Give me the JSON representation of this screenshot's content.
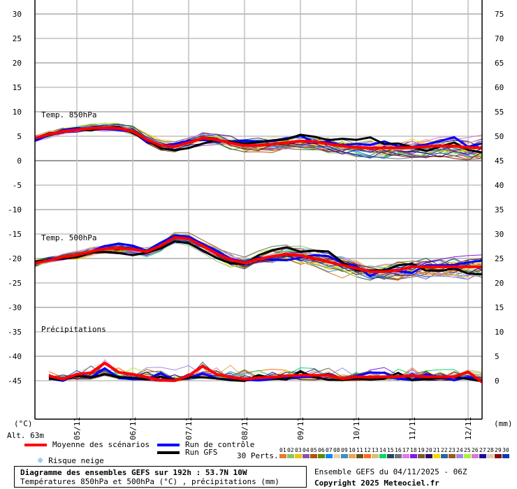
{
  "chart_data": {
    "type": "line",
    "title": "Diagramme des ensembles GEFS sur 192h : 53.7N 10W",
    "subtitle": "Températures 850hPa et 500hPa (°C) , précipitations (mm)",
    "run": "Ensemble GEFS du 04/11/2025 - 06Z",
    "x_step_hours": 6,
    "x_start": "04/11 06Z",
    "x_tick_labels": [
      "05/11",
      "06/11",
      "07/11",
      "08/11",
      "09/11",
      "10/11",
      "11/11",
      "12/11"
    ],
    "left_axis": {
      "label": "(°C)",
      "ticks": [
        30,
        25,
        20,
        15,
        10,
        5,
        0,
        -5,
        -10,
        -15,
        -20,
        -25,
        -30,
        -35,
        -40,
        -45
      ],
      "range": [
        -50,
        32
      ]
    },
    "right_axis": {
      "label": "(mm)",
      "ticks": [
        75,
        70,
        65,
        60,
        55,
        50,
        45,
        40,
        35,
        30,
        25,
        20,
        15,
        10,
        5,
        0
      ]
    },
    "grid": true,
    "panel_labels": [
      "Temp. 850hPa",
      "Temp. 500hPa",
      "Précipitations"
    ],
    "series": [
      {
        "name": "Moyenne des scénarios - Temp. 850hPa",
        "color": "#ff0000",
        "unit": "°C",
        "values": [
          4.6,
          5.4,
          6.0,
          6.3,
          6.6,
          6.7,
          6.6,
          6.0,
          4.3,
          3.1,
          2.9,
          3.7,
          4.6,
          4.3,
          3.6,
          3.1,
          3.1,
          3.4,
          3.7,
          4.0,
          3.9,
          3.4,
          3.0,
          2.7,
          2.6,
          2.6,
          2.6,
          2.7,
          2.9,
          3.0,
          3.0,
          2.7,
          2.6
        ]
      },
      {
        "name": "Moyenne des scénarios - Temp. 500hPa",
        "color": "#ff0000",
        "unit": "°C",
        "values": [
          -21.0,
          -20.4,
          -19.7,
          -19.3,
          -18.6,
          -18.0,
          -17.9,
          -18.1,
          -18.6,
          -17.4,
          -15.7,
          -16.0,
          -17.4,
          -19.0,
          -20.3,
          -20.9,
          -20.1,
          -19.6,
          -19.1,
          -19.4,
          -20.0,
          -20.7,
          -21.4,
          -22.0,
          -22.7,
          -22.7,
          -22.4,
          -21.7,
          -21.7,
          -21.7,
          -21.7,
          -21.7,
          -21.7
        ]
      },
      {
        "name": "Moyenne des scénarios - Précipitations",
        "color": "#ff0000",
        "unit": "mm",
        "start_index": 1,
        "values": [
          1.3,
          0.6,
          1.6,
          1.9,
          3.9,
          2.0,
          1.6,
          1.0,
          0.4,
          0.3,
          1.3,
          3.3,
          1.6,
          1.0,
          0.6,
          0.9,
          1.0,
          1.3,
          1.4,
          1.4,
          1.4,
          0.7,
          1.1,
          1.0,
          1.1,
          1.1,
          1.3,
          1.1,
          1.1,
          1.1,
          2.1,
          0.0
        ]
      }
    ],
    "legend": [
      {
        "label": "Moyenne des scénarios",
        "color": "#ff0000"
      },
      {
        "label": "Run de contrôle",
        "color": "#0000ff"
      },
      {
        "label": "Run GFS",
        "color": "#000000"
      },
      {
        "label": "Risque neige",
        "icon": "snowflake"
      }
    ],
    "perturbations": {
      "label": "30 Perts.",
      "ids": [
        "01",
        "02",
        "03",
        "04",
        "05",
        "06",
        "07",
        "08",
        "09",
        "10",
        "11",
        "12",
        "13",
        "14",
        "15",
        "16",
        "17",
        "18",
        "19",
        "20",
        "21",
        "22",
        "23",
        "24",
        "25",
        "26",
        "27",
        "28",
        "29",
        "30"
      ],
      "colors": [
        "#e8792f",
        "#86c46a",
        "#f2c200",
        "#8e4fb0",
        "#b0520e",
        "#5a8a0a",
        "#0a84ff",
        "#e8d3a8",
        "#3f8fbf",
        "#e8a85a",
        "#6a4f1a",
        "#ff6a1a",
        "#d6c07a",
        "#0ad66a",
        "#27475f",
        "#6a7278",
        "#e07ae8",
        "#7f1ae8",
        "#7a5a2f",
        "#2f0a6a",
        "#f2d800",
        "#2a63a0",
        "#9a5a1f",
        "#a08ae8",
        "#a8f23a",
        "#d87ad0",
        "#1f0aa0",
        "#e0ccaa",
        "#8a0a0a",
        "#0a3ab8"
      ]
    }
  },
  "axes": {
    "left_unit": "(°C)",
    "right_unit": "(mm)",
    "altitude": "Alt. 63m"
  },
  "labels": {
    "temp850": "Temp. 850hPa",
    "temp500": "Temp. 500hPa",
    "precip": "Précipitations"
  },
  "legend": {
    "mean": "Moyenne des scénarios",
    "control": "Run de contrôle",
    "gfs": "Run GFS",
    "snow": "Risque neige",
    "snow_icon": "❄",
    "perts": "30 Perts."
  },
  "footer": {
    "title": "Diagramme des ensembles GEFS sur 192h : 53.7N 10W",
    "subtitle": "Températures 850hPa et 500hPa (°C) , précipitations (mm)",
    "run": "Ensemble GEFS du 04/11/2025 - 06Z",
    "copyright": "Copyright 2025 Meteociel.fr"
  }
}
